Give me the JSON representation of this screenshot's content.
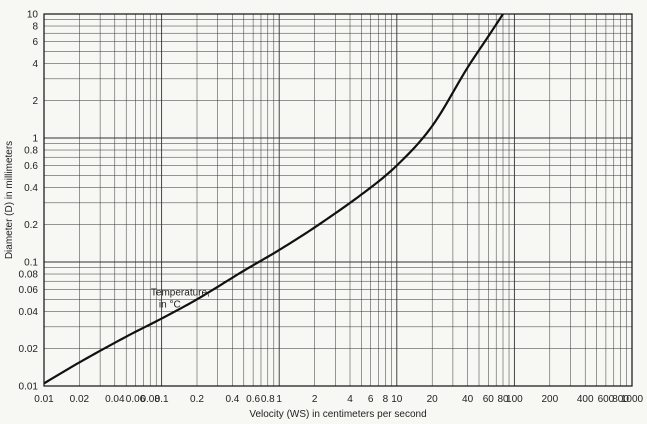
{
  "chart_data": {
    "type": "line",
    "title": "",
    "xlabel": "Velocity (WS) in centimeters per second",
    "ylabel": "Diameter (D) in millimeters",
    "xscale": "log",
    "yscale": "log",
    "xlim": [
      0.01,
      1000
    ],
    "ylim": [
      0.01,
      10
    ],
    "grid": true,
    "x_ticks": [
      {
        "value": 0.01,
        "label": "0.01"
      },
      {
        "value": 0.02,
        "label": "0.02"
      },
      {
        "value": 0.04,
        "label": "0.04"
      },
      {
        "value": 0.06,
        "label": "0.06"
      },
      {
        "value": 0.08,
        "label": "0.08"
      },
      {
        "value": 0.1,
        "label": "0.1"
      },
      {
        "value": 0.2,
        "label": "0.2"
      },
      {
        "value": 0.4,
        "label": "0.4"
      },
      {
        "value": 0.6,
        "label": "0.6"
      },
      {
        "value": 0.8,
        "label": "0.8"
      },
      {
        "value": 1,
        "label": "1"
      },
      {
        "value": 2,
        "label": "2"
      },
      {
        "value": 4,
        "label": "4"
      },
      {
        "value": 6,
        "label": "6"
      },
      {
        "value": 8,
        "label": "8"
      },
      {
        "value": 10,
        "label": "10"
      },
      {
        "value": 20,
        "label": "20"
      },
      {
        "value": 40,
        "label": "40"
      },
      {
        "value": 60,
        "label": "60"
      },
      {
        "value": 80,
        "label": "80"
      },
      {
        "value": 100,
        "label": "100"
      },
      {
        "value": 200,
        "label": "200"
      },
      {
        "value": 400,
        "label": "400"
      },
      {
        "value": 600,
        "label": "600"
      },
      {
        "value": 800,
        "label": "800"
      },
      {
        "value": 1000,
        "label": "1000"
      }
    ],
    "y_ticks": [
      {
        "value": 0.01,
        "label": "0.01"
      },
      {
        "value": 0.02,
        "label": "0.02"
      },
      {
        "value": 0.04,
        "label": "0.04"
      },
      {
        "value": 0.06,
        "label": "0.06"
      },
      {
        "value": 0.08,
        "label": "0.08"
      },
      {
        "value": 0.1,
        "label": "0.1"
      },
      {
        "value": 0.2,
        "label": "0.2"
      },
      {
        "value": 0.4,
        "label": "0.4"
      },
      {
        "value": 0.6,
        "label": "0.6"
      },
      {
        "value": 0.8,
        "label": "0.8"
      },
      {
        "value": 1,
        "label": "1"
      },
      {
        "value": 2,
        "label": "2"
      },
      {
        "value": 4,
        "label": "4"
      },
      {
        "value": 6,
        "label": "6"
      },
      {
        "value": 8,
        "label": "8"
      },
      {
        "value": 10,
        "label": "10"
      }
    ],
    "annotation": {
      "lines": [
        "Temperature,",
        "in °C"
      ],
      "x": 0.12,
      "y": 0.048
    },
    "series": [
      {
        "x": [
          0.01,
          0.02,
          0.05,
          0.1,
          0.2,
          0.5,
          1,
          2,
          5,
          10,
          20,
          40,
          60,
          80
        ],
        "y": [
          0.0105,
          0.0155,
          0.025,
          0.035,
          0.05,
          0.085,
          0.125,
          0.19,
          0.35,
          0.6,
          1.25,
          3.7,
          6.6,
          10
        ]
      }
    ],
    "color": "#111111"
  }
}
